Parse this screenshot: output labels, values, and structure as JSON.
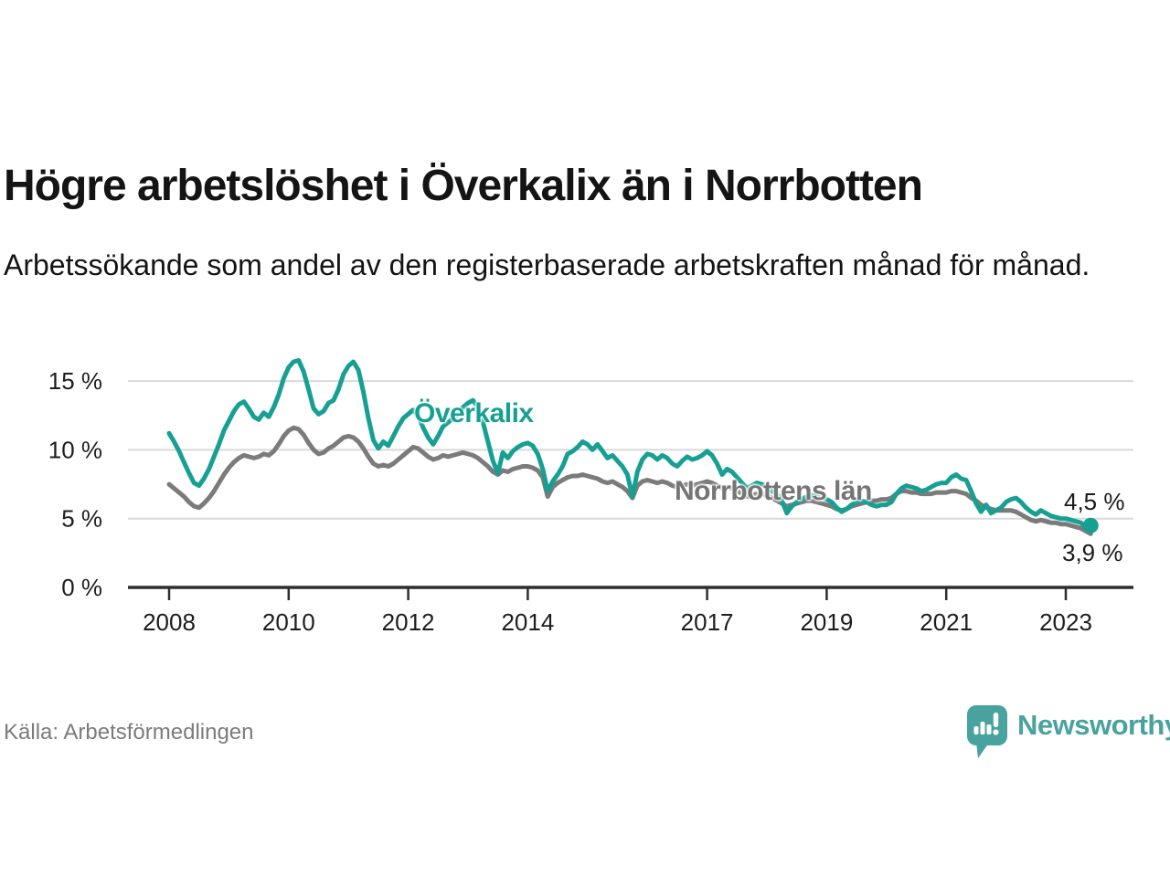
{
  "chart_data": {
    "type": "line",
    "title": "Högre arbetslöshet i Överkalix än i Norrbotten",
    "subtitle": "Arbetssökande som andel av den registerbaserade arbetskraften månad för månad.",
    "x_start_year": 2008,
    "x_months_per_point": 1,
    "x_end_label": "jun 2023",
    "x_ticks": [
      2008,
      2010,
      2012,
      2014,
      2017,
      2019,
      2021,
      2023
    ],
    "y_ticks": [
      0,
      5,
      10,
      15
    ],
    "y_tick_suffix": " %",
    "ylim": [
      0,
      17
    ],
    "grid": true,
    "legend_position": "inline-labels",
    "series": [
      {
        "name": "Överkalix",
        "color": "#16a093",
        "end_label": "4,5 %",
        "end_value": 4.5,
        "end_dot": true,
        "values": [
          11.2,
          10.6,
          9.9,
          9.1,
          8.3,
          7.6,
          7.4,
          7.9,
          8.6,
          9.5,
          10.4,
          11.4,
          12.1,
          12.8,
          13.3,
          13.5,
          13.0,
          12.4,
          12.2,
          12.7,
          12.4,
          13.1,
          14.0,
          15.2,
          16.0,
          16.4,
          16.5,
          15.7,
          14.4,
          13.0,
          12.6,
          12.8,
          13.4,
          13.6,
          14.4,
          15.5,
          16.1,
          16.4,
          15.8,
          14.2,
          12.3,
          10.7,
          10.1,
          10.6,
          10.3,
          11.0,
          11.7,
          12.3,
          12.6,
          12.9,
          12.5,
          11.6,
          10.9,
          10.4,
          11.0,
          11.7,
          12.0,
          12.3,
          12.6,
          13.1,
          13.4,
          13.6,
          13.1,
          12.0,
          10.6,
          9.2,
          8.3,
          9.8,
          9.4,
          9.9,
          10.2,
          10.4,
          10.5,
          10.3,
          9.7,
          8.6,
          7.0,
          7.7,
          8.2,
          8.8,
          9.7,
          9.9,
          10.2,
          10.6,
          10.4,
          10.0,
          10.4,
          9.9,
          9.4,
          9.6,
          9.2,
          8.8,
          8.2,
          6.6,
          8.4,
          9.3,
          9.7,
          9.6,
          9.3,
          9.6,
          9.4,
          9.0,
          8.8,
          9.2,
          9.5,
          9.3,
          9.4,
          9.6,
          9.9,
          9.6,
          9.0,
          8.2,
          8.6,
          8.4,
          8.0,
          7.6,
          7.2,
          7.4,
          7.6,
          7.5,
          7.3,
          7.0,
          6.8,
          6.3,
          5.4,
          5.9,
          6.2,
          6.4,
          6.6,
          6.7,
          6.6,
          6.5,
          6.4,
          6.2,
          5.8,
          5.5,
          5.7,
          6.0,
          6.2,
          6.3,
          6.2,
          6.0,
          5.9,
          6.0,
          6.0,
          6.2,
          6.8,
          7.2,
          7.4,
          7.3,
          7.2,
          7.0,
          7.1,
          7.3,
          7.5,
          7.6,
          7.6,
          8.0,
          8.2,
          7.9,
          7.8,
          7.0,
          6.1,
          5.5,
          6.0,
          5.4,
          5.6,
          5.8,
          6.2,
          6.4,
          6.5,
          6.2,
          5.8,
          5.5,
          5.3,
          5.6,
          5.4,
          5.2,
          5.1,
          5.0,
          5.0,
          4.9,
          4.8,
          4.7,
          4.4,
          4.5
        ]
      },
      {
        "name": "Norrbottens län",
        "color": "#7b7b7b",
        "label_color": "#757575",
        "end_label": "3,9 %",
        "end_value": 3.9,
        "end_dot": false,
        "values": [
          7.5,
          7.2,
          6.9,
          6.6,
          6.2,
          5.9,
          5.8,
          6.1,
          6.5,
          7.0,
          7.6,
          8.2,
          8.7,
          9.1,
          9.4,
          9.6,
          9.5,
          9.4,
          9.5,
          9.7,
          9.6,
          9.9,
          10.4,
          11.0,
          11.4,
          11.6,
          11.5,
          11.1,
          10.5,
          10.0,
          9.7,
          9.8,
          10.1,
          10.3,
          10.6,
          10.9,
          11.0,
          10.9,
          10.6,
          10.1,
          9.5,
          9.0,
          8.8,
          8.9,
          8.8,
          9.0,
          9.3,
          9.6,
          9.9,
          10.2,
          10.1,
          9.8,
          9.5,
          9.3,
          9.4,
          9.6,
          9.5,
          9.6,
          9.7,
          9.8,
          9.7,
          9.6,
          9.4,
          9.1,
          8.8,
          8.4,
          8.2,
          8.5,
          8.4,
          8.6,
          8.7,
          8.8,
          8.8,
          8.7,
          8.5,
          8.0,
          6.6,
          7.3,
          7.6,
          7.8,
          8.0,
          8.1,
          8.1,
          8.2,
          8.1,
          8.0,
          7.9,
          7.7,
          7.6,
          7.7,
          7.5,
          7.3,
          7.0,
          6.5,
          7.4,
          7.7,
          7.8,
          7.7,
          7.6,
          7.7,
          7.6,
          7.4,
          7.3,
          7.4,
          7.5,
          7.4,
          7.5,
          7.6,
          7.7,
          7.6,
          7.4,
          7.2,
          7.3,
          7.2,
          7.0,
          6.8,
          6.6,
          6.7,
          6.8,
          6.8,
          6.7,
          6.5,
          6.3,
          6.1,
          5.9,
          6.0,
          6.1,
          6.2,
          6.3,
          6.3,
          6.2,
          6.1,
          6.0,
          5.9,
          5.7,
          5.6,
          5.7,
          5.9,
          6.0,
          6.1,
          6.2,
          6.3,
          6.3,
          6.4,
          6.4,
          6.5,
          6.8,
          7.0,
          7.0,
          6.9,
          6.9,
          6.8,
          6.8,
          6.8,
          6.9,
          6.9,
          6.9,
          7.0,
          7.0,
          6.9,
          6.8,
          6.5,
          6.3,
          6.0,
          5.8,
          5.7,
          5.6,
          5.6,
          5.6,
          5.6,
          5.5,
          5.3,
          5.1,
          4.9,
          4.8,
          4.9,
          4.8,
          4.7,
          4.7,
          4.6,
          4.6,
          4.5,
          4.4,
          4.3,
          4.1,
          3.9
        ]
      }
    ],
    "colors": {
      "axis": "#2e2e2e",
      "grid": "#d9d9d9",
      "tick_label": "#1d1d1d"
    }
  },
  "footer": {
    "source": "Källa: Arbetsförmedlingen",
    "brand": "Newsworthy",
    "brand_color": "#48a39e"
  }
}
